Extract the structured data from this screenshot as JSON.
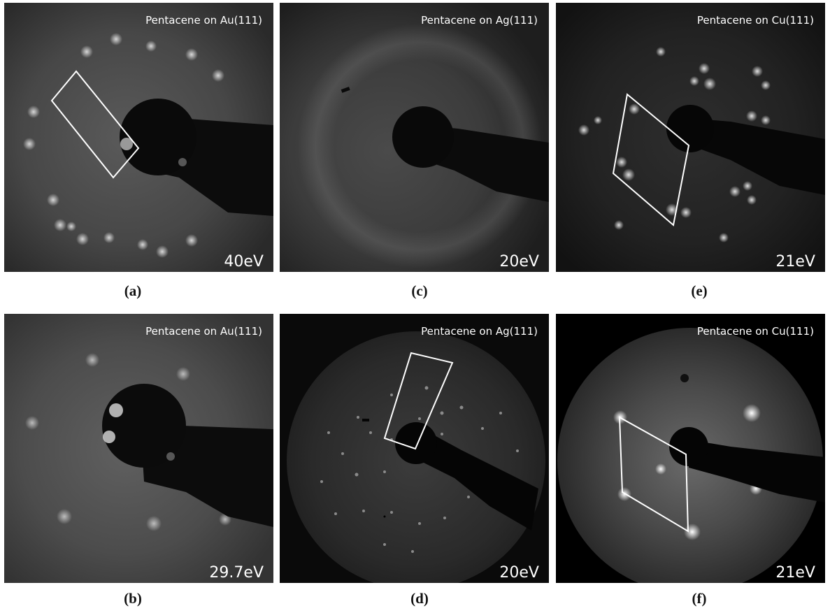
{
  "panels": {
    "a": {
      "title": "Pentacene on Au(111)",
      "energy": "40eV",
      "caption": "(a)"
    },
    "b": {
      "title": "Pentacene on Au(111)",
      "energy": "29.7eV",
      "caption": "(b)"
    },
    "c": {
      "title": "Pentacene on Ag(111)",
      "energy": "20eV",
      "caption": "(c)"
    },
    "d": {
      "title": "Pentacene on Ag(111)",
      "energy": "20eV",
      "caption": "(d)"
    },
    "e": {
      "title": "Pentacene on Cu(111)",
      "energy": "21eV",
      "caption": "(e)"
    },
    "f": {
      "title": "Pentacene on Cu(111)",
      "energy": "21eV",
      "caption": "(f)"
    }
  }
}
